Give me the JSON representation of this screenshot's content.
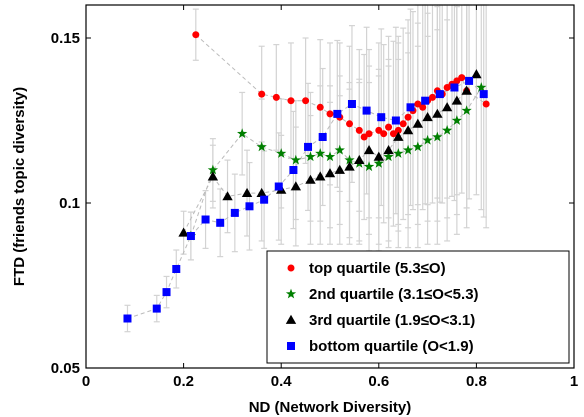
{
  "chart_data": {
    "type": "scatter",
    "xlabel": "ND (Network Diversity)",
    "ylabel": "FTD (friends topic diversity)",
    "xlim": [
      0,
      1
    ],
    "ylim": [
      0.05,
      0.16
    ],
    "x_ticks": [
      0,
      0.2,
      0.4,
      0.6,
      0.8,
      1
    ],
    "x_tick_labels": [
      "0",
      "0.2",
      "0.4",
      "0.6",
      "0.8",
      "1"
    ],
    "y_ticks": [
      0.05,
      0.1,
      0.15
    ],
    "y_tick_labels": [
      "0.05",
      "0.1",
      "0.15"
    ],
    "grid": false,
    "legend_position": "bottom-right",
    "error_bar_color": "#d3d3d3",
    "connector_color": "#bbbbbb",
    "series": [
      {
        "name": "top quartile (5.3≤O)",
        "marker": "circle",
        "color": "#ff0000",
        "x": [
          0.225,
          0.36,
          0.39,
          0.42,
          0.45,
          0.48,
          0.5,
          0.52,
          0.54,
          0.56,
          0.57,
          0.58,
          0.6,
          0.61,
          0.62,
          0.63,
          0.64,
          0.65,
          0.66,
          0.67,
          0.68,
          0.69,
          0.7,
          0.71,
          0.72,
          0.73,
          0.74,
          0.75,
          0.76,
          0.77,
          0.78,
          0.82
        ],
        "y": [
          0.151,
          0.133,
          0.132,
          0.131,
          0.131,
          0.129,
          0.127,
          0.126,
          0.124,
          0.122,
          0.12,
          0.121,
          0.122,
          0.121,
          0.123,
          0.121,
          0.122,
          0.124,
          0.126,
          0.128,
          0.13,
          0.129,
          0.131,
          0.132,
          0.134,
          0.133,
          0.135,
          0.136,
          0.137,
          0.138,
          0.134,
          0.13
        ]
      },
      {
        "name": "2nd quartile (3.1≤O<5.3)",
        "marker": "star",
        "color": "#007f00",
        "x": [
          0.215,
          0.26,
          0.32,
          0.36,
          0.4,
          0.43,
          0.46,
          0.48,
          0.5,
          0.52,
          0.54,
          0.56,
          0.58,
          0.6,
          0.62,
          0.64,
          0.66,
          0.68,
          0.7,
          0.72,
          0.74,
          0.76,
          0.78,
          0.81
        ],
        "y": [
          0.09,
          0.11,
          0.121,
          0.117,
          0.115,
          0.113,
          0.114,
          0.115,
          0.114,
          0.116,
          0.113,
          0.112,
          0.111,
          0.112,
          0.114,
          0.115,
          0.116,
          0.117,
          0.119,
          0.12,
          0.122,
          0.125,
          0.128,
          0.135
        ]
      },
      {
        "name": "3rd quartile (1.9≤O<3.1)",
        "marker": "triangle",
        "color": "#000000",
        "x": [
          0.2,
          0.26,
          0.29,
          0.33,
          0.36,
          0.4,
          0.43,
          0.46,
          0.48,
          0.5,
          0.52,
          0.54,
          0.56,
          0.58,
          0.6,
          0.62,
          0.64,
          0.66,
          0.68,
          0.7,
          0.72,
          0.74,
          0.76,
          0.78,
          0.8
        ],
        "y": [
          0.091,
          0.108,
          0.102,
          0.103,
          0.103,
          0.104,
          0.105,
          0.107,
          0.108,
          0.109,
          0.11,
          0.111,
          0.113,
          0.116,
          0.114,
          0.116,
          0.12,
          0.122,
          0.124,
          0.126,
          0.127,
          0.129,
          0.131,
          0.134,
          0.139
        ]
      },
      {
        "name": "bottom quartile (O<1.9)",
        "marker": "square",
        "color": "#0000ff",
        "x": [
          0.085,
          0.145,
          0.165,
          0.185,
          0.215,
          0.245,
          0.275,
          0.305,
          0.335,
          0.365,
          0.395,
          0.425,
          0.455,
          0.485,
          0.515,
          0.545,
          0.575,
          0.605,
          0.635,
          0.665,
          0.695,
          0.725,
          0.755,
          0.785,
          0.815
        ],
        "y": [
          0.065,
          0.068,
          0.073,
          0.08,
          0.09,
          0.095,
          0.094,
          0.097,
          0.099,
          0.101,
          0.105,
          0.11,
          0.117,
          0.12,
          0.127,
          0.13,
          0.128,
          0.126,
          0.125,
          0.129,
          0.131,
          0.133,
          0.135,
          0.137,
          0.133
        ]
      }
    ]
  }
}
